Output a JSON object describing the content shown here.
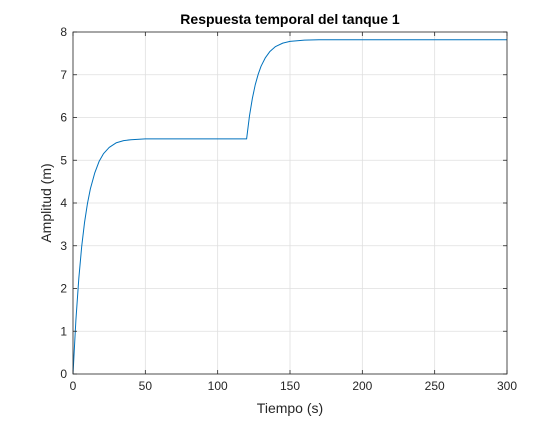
{
  "chart_data": {
    "type": "line",
    "title": "Respuesta temporal del tanque 1",
    "xlabel": "Tiempo (s)",
    "ylabel": "Amplitud (m)",
    "xlim": [
      0,
      300
    ],
    "ylim": [
      0,
      8
    ],
    "xticks": [
      0,
      50,
      100,
      150,
      200,
      250,
      300
    ],
    "yticks": [
      0,
      1,
      2,
      3,
      4,
      5,
      6,
      7,
      8
    ],
    "grid": true,
    "series": [
      {
        "color": "#0072bd",
        "x": [
          0,
          2,
          4,
          6,
          8,
          10,
          12,
          15,
          18,
          21,
          25,
          30,
          35,
          40,
          50,
          60,
          70,
          80,
          90,
          100,
          110,
          120,
          122,
          124,
          126,
          128,
          130,
          133,
          136,
          140,
          145,
          150,
          160,
          170,
          180,
          200,
          220,
          250,
          280,
          300
        ],
        "y": [
          0,
          1.26,
          2.23,
          2.98,
          3.55,
          3.99,
          4.33,
          4.7,
          4.97,
          5.15,
          5.3,
          5.41,
          5.46,
          5.48,
          5.5,
          5.5,
          5.5,
          5.5,
          5.5,
          5.5,
          5.5,
          5.5,
          6.04,
          6.45,
          6.77,
          7.01,
          7.2,
          7.4,
          7.54,
          7.66,
          7.74,
          7.78,
          7.81,
          7.82,
          7.82,
          7.82,
          7.82,
          7.82,
          7.82,
          7.82
        ]
      }
    ]
  }
}
